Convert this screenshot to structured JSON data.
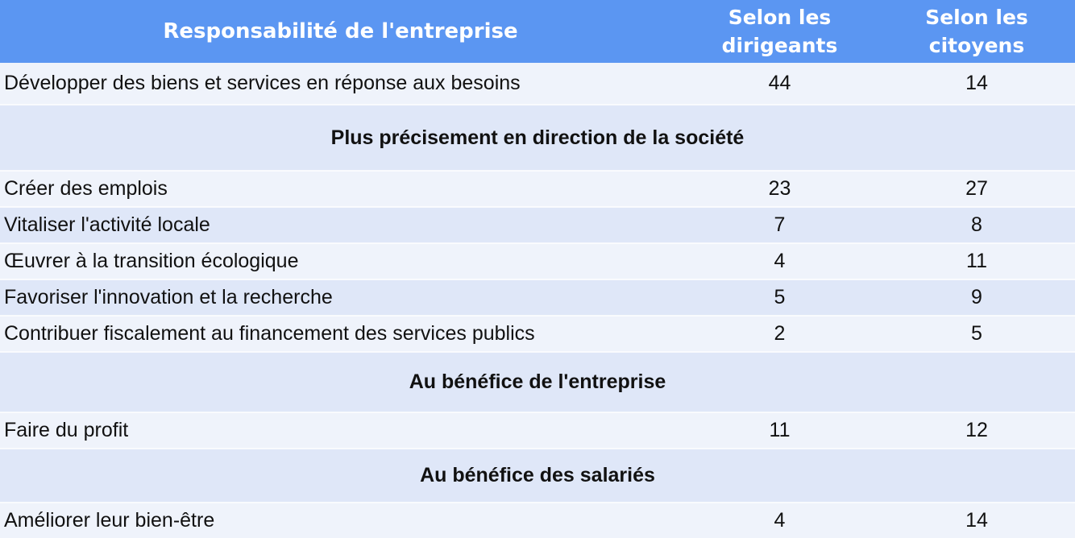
{
  "table": {
    "header": {
      "responsibility": "Responsabilité de l'entreprise",
      "dirigeants": "Selon les dirigeants",
      "citoyens": "Selon les citoyens"
    },
    "rows": [
      {
        "type": "data",
        "label": "Développer des biens et services en réponse aux besoins",
        "dirigeants": "44",
        "citoyens": "14"
      },
      {
        "type": "section",
        "label": "Plus précisement en direction de la société"
      },
      {
        "type": "data",
        "label": "Créer des emplois",
        "dirigeants": "23",
        "citoyens": "27"
      },
      {
        "type": "data",
        "label": "Vitaliser l'activité locale",
        "dirigeants": "7",
        "citoyens": "8"
      },
      {
        "type": "data",
        "label": "Œuvrer à la transition écologique",
        "dirigeants": "4",
        "citoyens": "11"
      },
      {
        "type": "data",
        "label": "Favoriser l'innovation et la recherche",
        "dirigeants": "5",
        "citoyens": "9"
      },
      {
        "type": "data",
        "label": "Contribuer fiscalement au financement des services publics",
        "dirigeants": "2",
        "citoyens": "5"
      },
      {
        "type": "section",
        "label": "Au bénéfice de l'entreprise"
      },
      {
        "type": "data",
        "label": "Faire du profit",
        "dirigeants": "11",
        "citoyens": "12"
      },
      {
        "type": "section",
        "label": "Au bénéfice des salariés"
      },
      {
        "type": "data",
        "label": "Améliorer leur bien-être",
        "dirigeants": "4",
        "citoyens": "14"
      }
    ]
  },
  "colors": {
    "header_bg": "#5B96F2",
    "header_text": "#FFFFFF",
    "row_light": "#EFF3FB",
    "row_dark": "#DFE7F8",
    "body_text": "#111111"
  },
  "chart_data": {
    "type": "table",
    "title": "Responsabilité de l'entreprise",
    "columns": [
      "Responsabilité de l'entreprise",
      "Selon les dirigeants",
      "Selon les citoyens"
    ],
    "sections": [
      {
        "name": "",
        "rows": [
          [
            "Développer des biens et services en réponse aux besoins",
            44,
            14
          ]
        ]
      },
      {
        "name": "Plus précisement en direction de la société",
        "rows": [
          [
            "Créer des emplois",
            23,
            27
          ],
          [
            "Vitaliser l'activité locale",
            7,
            8
          ],
          [
            "Œuvrer à la transition écologique",
            4,
            11
          ],
          [
            "Favoriser l'innovation et la recherche",
            5,
            9
          ],
          [
            "Contribuer fiscalement au financement des services publics",
            2,
            5
          ]
        ]
      },
      {
        "name": "Au bénéfice de l'entreprise",
        "rows": [
          [
            "Faire du profit",
            11,
            12
          ]
        ]
      },
      {
        "name": "Au bénéfice des salariés",
        "rows": [
          [
            "Améliorer leur bien-être",
            4,
            14
          ]
        ]
      }
    ]
  }
}
